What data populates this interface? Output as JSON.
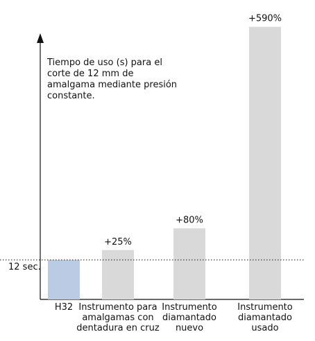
{
  "chart_data": {
    "type": "bar",
    "title": "Tiempo de uso (s) para el corte de 12 mm de amalgama mediante presión constante.",
    "categories": [
      "H32",
      "Instrumento para amalgamas con dentadura en cruz",
      "Instrumento diamantado nuevo",
      "Instrumento diamantado usado"
    ],
    "values": [
      12,
      15,
      21.6,
      82.8
    ],
    "value_labels": [
      null,
      "+25%",
      "+80%",
      "+590%"
    ],
    "colors": [
      "#bccbe4",
      "#d9d9d9",
      "#d9d9d9",
      "#d9d9d9"
    ],
    "ylim": [
      0,
      84
    ],
    "yticks": [
      {
        "value": 12,
        "label": "12 sec."
      }
    ]
  }
}
